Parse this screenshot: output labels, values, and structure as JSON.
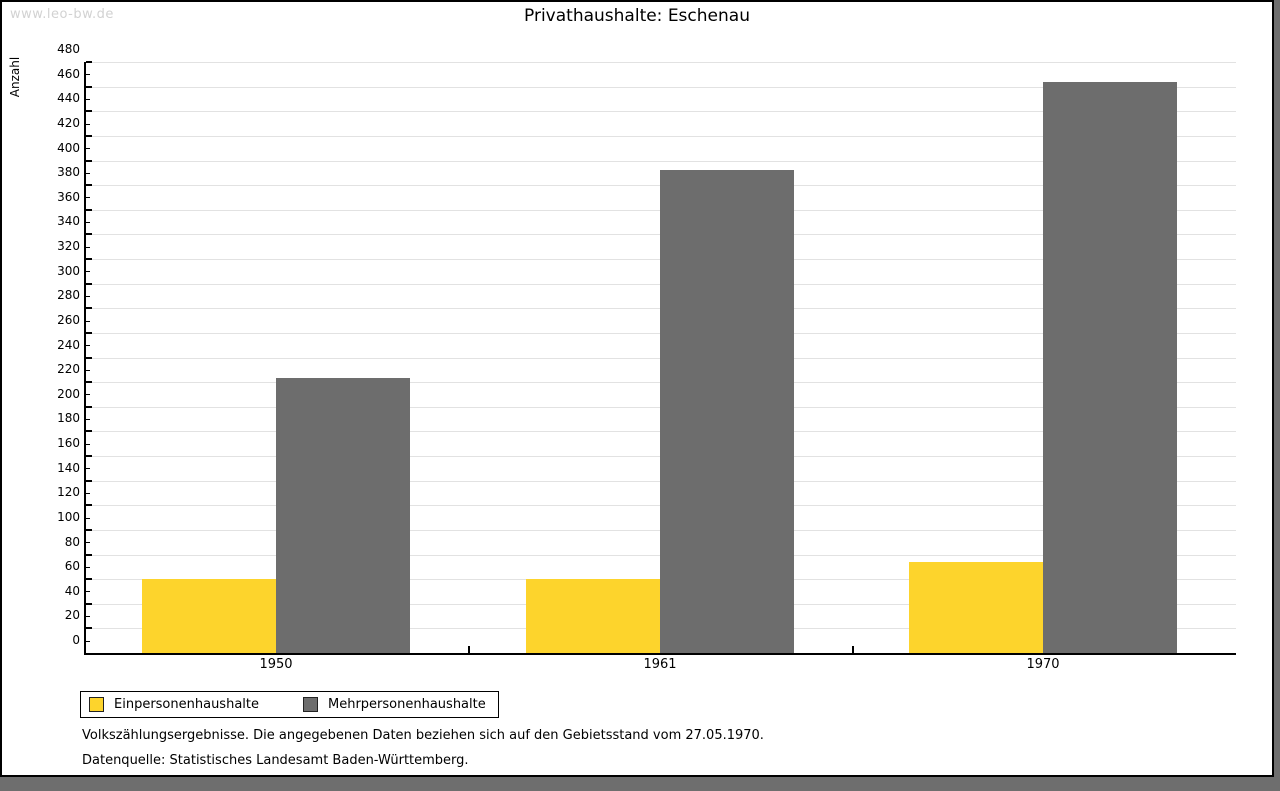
{
  "watermark": "www.leo-bw.de",
  "title": "Privathaushalte: Eschenau",
  "chart_data": {
    "type": "bar",
    "title": "Privathaushalte: Eschenau",
    "categories": [
      "1950",
      "1961",
      "1970"
    ],
    "series": [
      {
        "name": "Einpersonenhaushalte",
        "color": "#fdd42c",
        "values": [
          60,
          60,
          74
        ]
      },
      {
        "name": "Mehrpersonenhaushalte",
        "color": "#6d6d6d",
        "values": [
          223,
          392,
          464
        ]
      }
    ],
    "xlabel": "",
    "ylabel": "Anzahl",
    "ylim": [
      0,
      480
    ],
    "ytick_step": 20,
    "ytick_minor_step": 10,
    "grid": true,
    "legend_position": "bottom-left"
  },
  "footer": {
    "line1": "Volkszählungsergebnisse. Die angegebenen Daten beziehen sich auf den Gebietsstand vom 27.05.1970.",
    "line2": "Datenquelle: Statistisches Landesamt Baden-Württemberg."
  }
}
